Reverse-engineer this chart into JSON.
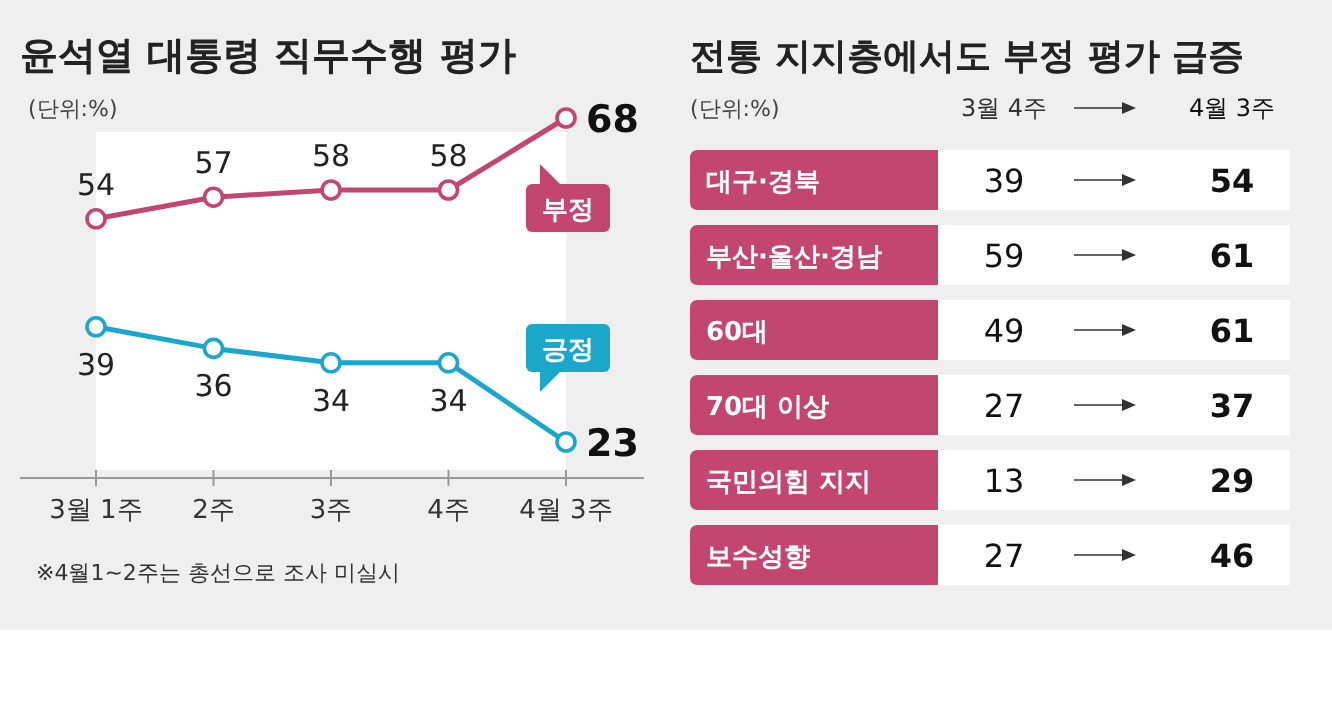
{
  "chart_data": [
    {
      "type": "line",
      "title": "윤석열 대통령 직무수행 평가",
      "subtitle": "(단위:%)",
      "categories": [
        "3월 1주",
        "2주",
        "3주",
        "4주",
        "4월 3주"
      ],
      "series": [
        {
          "name": "부정",
          "color": "#c2466f",
          "values": [
            54,
            57,
            58,
            58,
            68
          ]
        },
        {
          "name": "긍정",
          "color": "#1ba6cc",
          "values": [
            39,
            36,
            34,
            34,
            23
          ]
        }
      ],
      "marker": "circle",
      "data_labels": true,
      "annotations": [
        "※4월1~2주는 총선으로 조사 미실시"
      ]
    },
    {
      "type": "other",
      "title": "전통 지지층에서도 부정 평가 급증",
      "subtitle": "(단위:%)",
      "categories": [
        "대구·경북",
        "부산·울산·경남",
        "60대",
        "70대 이상",
        "국민의힘 지지",
        "보수성향"
      ],
      "series": [
        {
          "name": "3월 4주",
          "values": [
            39,
            59,
            49,
            27,
            13,
            27
          ]
        },
        {
          "name": "4월 3주",
          "values": [
            54,
            61,
            61,
            37,
            29,
            46
          ]
        }
      ],
      "data_labels": true
    }
  ]
}
